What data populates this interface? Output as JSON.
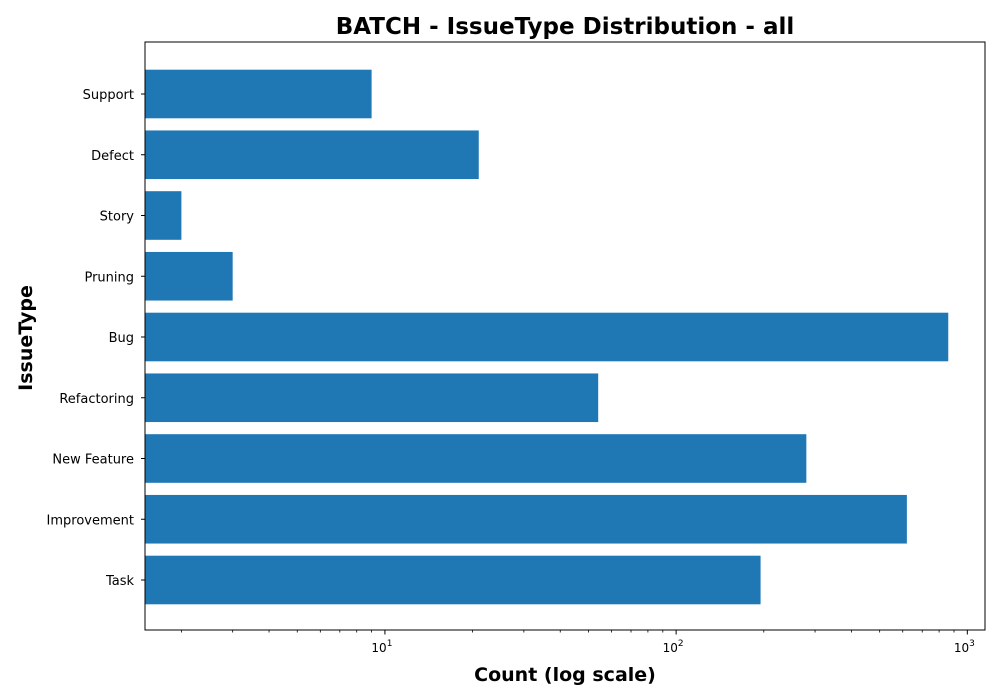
{
  "chart_data": {
    "type": "bar",
    "orientation": "horizontal",
    "title": "BATCH - IssueType Distribution - all",
    "xlabel": "Count (log scale)",
    "ylabel": "IssueType",
    "x_scale": "log",
    "xlim": [
      1.5,
      1150
    ],
    "x_ticks": [
      {
        "base": "10",
        "exp": "1",
        "value": 10
      },
      {
        "base": "10",
        "exp": "2",
        "value": 100
      },
      {
        "base": "10",
        "exp": "3",
        "value": 1000
      }
    ],
    "categories": [
      "Task",
      "Improvement",
      "New Feature",
      "Refactoring",
      "Bug",
      "Pruning",
      "Story",
      "Defect",
      "Support"
    ],
    "values": [
      195,
      620,
      280,
      54,
      860,
      3,
      2,
      21,
      9
    ],
    "color": "#1f77b4",
    "grid": false
  }
}
